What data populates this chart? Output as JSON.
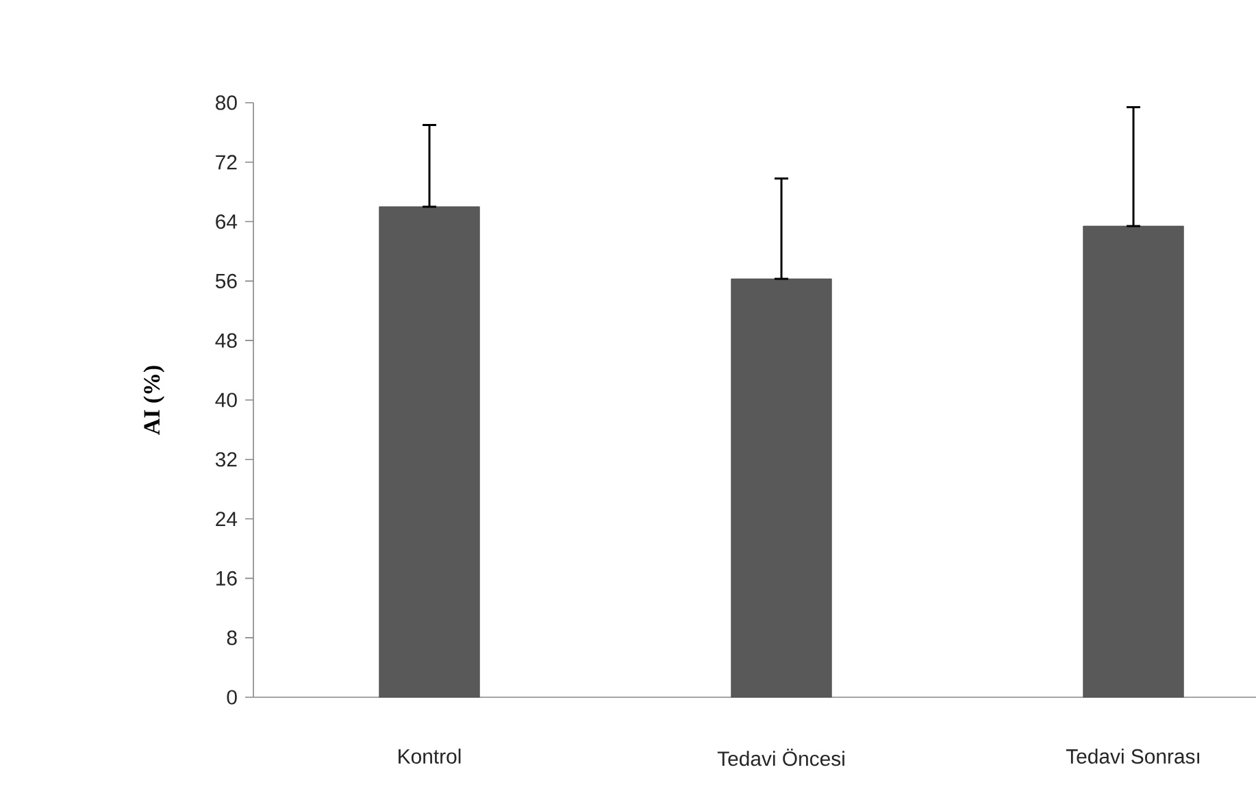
{
  "chart_data": {
    "type": "bar",
    "ylabel": "AI (%)",
    "categories": [
      "Kontrol",
      "Tedavi Öncesi",
      "Tedavi Sonrası"
    ],
    "values": [
      66,
      56.3,
      63.4
    ],
    "errors": [
      [
        66,
        77
      ],
      [
        56.3,
        69.8
      ],
      [
        63.4,
        79.4
      ]
    ],
    "color": "#595959",
    "ylim": [
      0,
      80
    ],
    "yticks": [
      0,
      8,
      16,
      24,
      32,
      40,
      48,
      56,
      64,
      72,
      80
    ],
    "grid": false
  }
}
